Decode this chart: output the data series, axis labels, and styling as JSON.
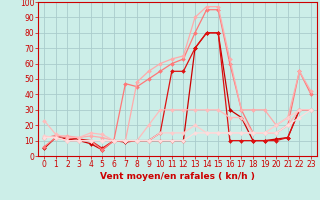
{
  "xlabel": "Vent moyen/en rafales ( kn/h )",
  "background_color": "#cceee8",
  "grid_color": "#aacccc",
  "xlim": [
    -0.5,
    23.5
  ],
  "ylim": [
    0,
    100
  ],
  "yticks": [
    0,
    10,
    20,
    30,
    40,
    50,
    60,
    70,
    80,
    90,
    100
  ],
  "xticks": [
    0,
    1,
    2,
    3,
    4,
    5,
    6,
    7,
    8,
    9,
    10,
    11,
    12,
    13,
    14,
    15,
    16,
    17,
    18,
    19,
    20,
    21,
    22,
    23
  ],
  "series": [
    {
      "x": [
        0,
        1,
        2,
        3,
        4,
        5,
        6,
        7,
        8,
        9,
        10,
        11,
        12,
        13,
        14,
        15,
        16,
        17,
        18,
        19,
        20,
        21,
        22,
        23
      ],
      "y": [
        5,
        12,
        11,
        10,
        8,
        4,
        10,
        9,
        10,
        10,
        10,
        10,
        10,
        70,
        80,
        80,
        30,
        25,
        10,
        10,
        11,
        12,
        30,
        30
      ],
      "color": "#cc0000",
      "lw": 0.9,
      "marker": "D",
      "ms": 2.0
    },
    {
      "x": [
        0,
        1,
        2,
        3,
        4,
        5,
        6,
        7,
        8,
        9,
        10,
        11,
        12,
        13,
        14,
        15,
        16,
        17,
        18,
        19,
        20,
        21,
        22,
        23
      ],
      "y": [
        12,
        13,
        12,
        11,
        10,
        5,
        10,
        10,
        10,
        10,
        15,
        55,
        55,
        70,
        80,
        80,
        10,
        10,
        10,
        10,
        10,
        12,
        30,
        30
      ],
      "color": "#dd1111",
      "lw": 0.9,
      "marker": "D",
      "ms": 2.0
    },
    {
      "x": [
        0,
        1,
        2,
        3,
        4,
        5,
        6,
        7,
        8,
        9,
        10,
        11,
        12,
        13,
        14,
        15,
        16,
        17,
        18,
        19,
        20,
        21,
        22,
        23
      ],
      "y": [
        6,
        12,
        10,
        10,
        10,
        4,
        10,
        47,
        45,
        50,
        55,
        60,
        63,
        80,
        95,
        95,
        60,
        30,
        15,
        15,
        15,
        20,
        55,
        40
      ],
      "color": "#ff7777",
      "lw": 0.9,
      "marker": "D",
      "ms": 2.0
    },
    {
      "x": [
        0,
        1,
        2,
        3,
        4,
        5,
        6,
        7,
        8,
        9,
        10,
        11,
        12,
        13,
        14,
        15,
        16,
        17,
        18,
        19,
        20,
        21,
        22,
        23
      ],
      "y": [
        12,
        13,
        13,
        12,
        13,
        12,
        10,
        10,
        48,
        55,
        60,
        63,
        65,
        90,
        97,
        97,
        63,
        30,
        30,
        30,
        20,
        25,
        55,
        42
      ],
      "color": "#ffaaaa",
      "lw": 0.9,
      "marker": "D",
      "ms": 2.0
    },
    {
      "x": [
        0,
        1,
        2,
        3,
        4,
        5,
        6,
        7,
        8,
        9,
        10,
        11,
        12,
        13,
        14,
        15,
        16,
        17,
        18,
        19,
        20,
        21,
        22,
        23
      ],
      "y": [
        23,
        14,
        12,
        12,
        15,
        14,
        10,
        10,
        10,
        20,
        30,
        30,
        30,
        30,
        30,
        30,
        25,
        25,
        15,
        15,
        15,
        20,
        30,
        30
      ],
      "color": "#ffbbbb",
      "lw": 0.9,
      "marker": "D",
      "ms": 2.0
    },
    {
      "x": [
        0,
        1,
        2,
        3,
        4,
        5,
        6,
        7,
        8,
        9,
        10,
        11,
        12,
        13,
        14,
        15,
        16,
        17,
        18,
        19,
        20,
        21,
        22,
        23
      ],
      "y": [
        13,
        12,
        10,
        10,
        10,
        10,
        10,
        10,
        10,
        10,
        15,
        15,
        15,
        20,
        15,
        15,
        15,
        15,
        15,
        15,
        20,
        25,
        30,
        30
      ],
      "color": "#ffcccc",
      "lw": 0.9,
      "marker": "D",
      "ms": 2.0
    },
    {
      "x": [
        0,
        1,
        2,
        3,
        4,
        5,
        6,
        7,
        8,
        9,
        10,
        11,
        12,
        13,
        14,
        15,
        16,
        17,
        18,
        19,
        20,
        21,
        22,
        23
      ],
      "y": [
        12,
        12,
        10,
        10,
        10,
        10,
        10,
        10,
        10,
        10,
        10,
        10,
        10,
        15,
        15,
        15,
        15,
        15,
        15,
        15,
        15,
        20,
        25,
        30
      ],
      "color": "#ffdddd",
      "lw": 0.9,
      "marker": "D",
      "ms": 2.0
    }
  ],
  "xlabel_color": "#cc0000",
  "xlabel_fontsize": 6.5,
  "tick_fontsize": 5.5,
  "tick_color": "#cc0000",
  "spine_color": "#cc0000"
}
